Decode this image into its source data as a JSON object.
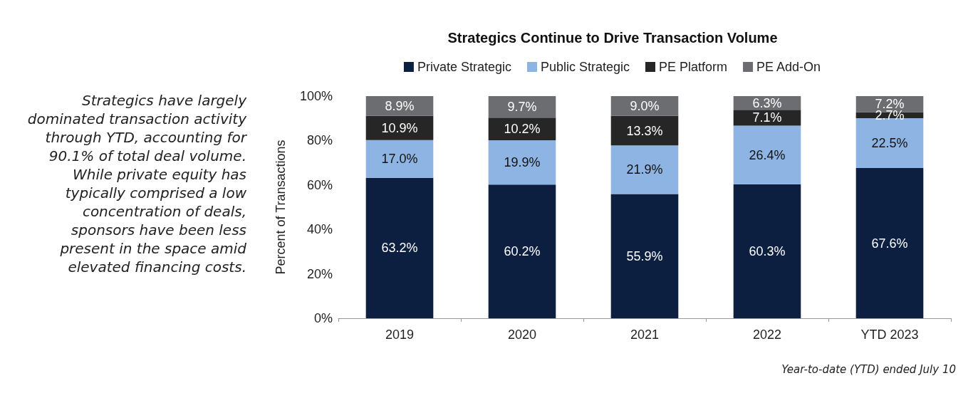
{
  "chart_data": {
    "type": "bar",
    "title": "Strategics Continue to Drive Transaction Volume",
    "ylabel": "Percent of Transactions",
    "categories": [
      "2019",
      "2020",
      "2021",
      "2022",
      "YTD 2023"
    ],
    "stacked": true,
    "legend": "top",
    "grid": false,
    "ylim": [
      0,
      100
    ],
    "yticks": [
      {
        "value": 0,
        "label": "0%"
      },
      {
        "value": 20,
        "label": "20%"
      },
      {
        "value": 40,
        "label": "40%"
      },
      {
        "value": 60,
        "label": "60%"
      },
      {
        "value": 80,
        "label": "80%"
      },
      {
        "value": 100,
        "label": "100%"
      }
    ],
    "series": [
      {
        "name": "Private Strategic",
        "color": "#0c1f40",
        "values": [
          63.2,
          60.2,
          55.9,
          60.3,
          67.6
        ],
        "value_labels": [
          "63.2%",
          "60.2%",
          "55.9%",
          "60.3%",
          "67.6%"
        ]
      },
      {
        "name": "Public Strategic",
        "color": "#8db4e2",
        "values": [
          17.0,
          19.9,
          21.9,
          26.4,
          22.5
        ],
        "value_labels": [
          "17.0%",
          "19.9%",
          "21.9%",
          "26.4%",
          "22.5%"
        ]
      },
      {
        "name": "PE Platform",
        "color": "#262626",
        "values": [
          10.9,
          10.2,
          13.3,
          7.1,
          2.7
        ],
        "value_labels": [
          "10.9%",
          "10.2%",
          "13.3%",
          "7.1%",
          "2.7%"
        ]
      },
      {
        "name": "PE Add-On",
        "color": "#6b6d70",
        "values": [
          8.9,
          9.7,
          9.0,
          6.3,
          7.2
        ],
        "value_labels": [
          "8.9%",
          "9.7%",
          "9.0%",
          "6.3%",
          "7.2%"
        ]
      }
    ],
    "annotations": [
      "Strategics have largely dominated transaction activity through YTD, accounting for 90.1% of total deal volume. While private equity has typically comprised a low concentration of deals, sponsors have been less present in the space amid elevated financing costs.",
      "Year-to-date (YTD) ended July 10"
    ]
  }
}
